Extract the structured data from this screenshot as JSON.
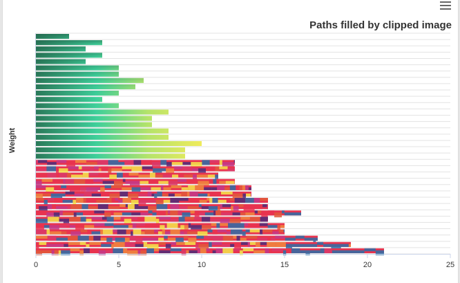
{
  "chart_data": {
    "type": "bar",
    "orientation": "horizontal",
    "title": "Paths filled by clipped image",
    "xlabel": "",
    "ylabel": "Weight",
    "xlim": [
      0,
      25
    ],
    "xticks": [
      "0",
      "5",
      "10",
      "15",
      "20",
      "25"
    ],
    "grid": "vertical-category-lines",
    "values": [
      2,
      4,
      3,
      4,
      3,
      5,
      5,
      6.5,
      6,
      5,
      4,
      5,
      8,
      7,
      7,
      8,
      8,
      10,
      9,
      9,
      12,
      12,
      11,
      12,
      13,
      13,
      14,
      14,
      16,
      14,
      15,
      15,
      17,
      19,
      21
    ],
    "colors": {
      "gradient_top": "#2a7a5a",
      "gradient_mid": "#3ecf9a",
      "gradient_yellow": "#f7ec5a",
      "photo_red": "#e8344f",
      "photo_magenta": "#c23a8a",
      "photo_blue": "#2b6fa8",
      "photo_yellow": "#f5e94a",
      "photo_purple": "#4b2d7a"
    }
  },
  "menu": {
    "icon": "hamburger-menu-icon"
  }
}
